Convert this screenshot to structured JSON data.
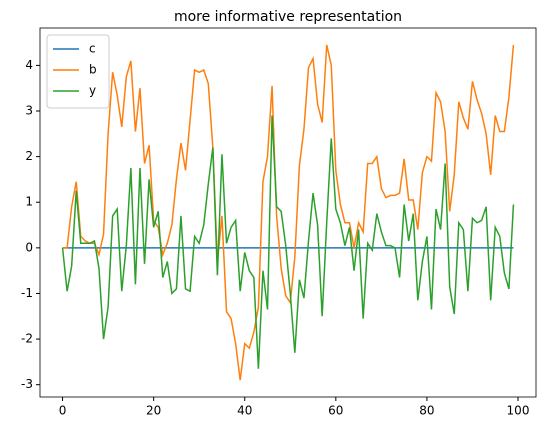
{
  "chart_data": {
    "type": "line",
    "title": "more informative representation",
    "x": [
      0,
      1,
      2,
      3,
      4,
      5,
      6,
      7,
      8,
      9,
      10,
      11,
      12,
      13,
      14,
      15,
      16,
      17,
      18,
      19,
      20,
      21,
      22,
      23,
      24,
      25,
      26,
      27,
      28,
      29,
      30,
      31,
      32,
      33,
      34,
      35,
      36,
      37,
      38,
      39,
      40,
      41,
      42,
      43,
      44,
      45,
      46,
      47,
      48,
      49,
      50,
      51,
      52,
      53,
      54,
      55,
      56,
      57,
      58,
      59,
      60,
      61,
      62,
      63,
      64,
      65,
      66,
      67,
      68,
      69,
      70,
      71,
      72,
      73,
      74,
      75,
      76,
      77,
      78,
      79,
      80,
      81,
      82,
      83,
      84,
      85,
      86,
      87,
      88,
      89,
      90,
      91,
      92,
      93,
      94,
      95,
      96,
      97,
      98,
      99
    ],
    "series": [
      {
        "name": "c",
        "color": "#1f77b4",
        "values": [
          0,
          0,
          0,
          0,
          0,
          0,
          0,
          0,
          0,
          0,
          0,
          0,
          0,
          0,
          0,
          0,
          0,
          0,
          0,
          0,
          0,
          0,
          0,
          0,
          0,
          0,
          0,
          0,
          0,
          0,
          0,
          0,
          0,
          0,
          0,
          0,
          0,
          0,
          0,
          0,
          0,
          0,
          0,
          0,
          0,
          0,
          0,
          0,
          0,
          0,
          0,
          0,
          0,
          0,
          0,
          0,
          0,
          0,
          0,
          0,
          0,
          0,
          0,
          0,
          0,
          0,
          0,
          0,
          0,
          0,
          0,
          0,
          0,
          0,
          0,
          0,
          0,
          0,
          0,
          0,
          0,
          0,
          0,
          0,
          0,
          0,
          0,
          0,
          0,
          0,
          0,
          0,
          0,
          0,
          0,
          0,
          0,
          0,
          0,
          0
        ]
      },
      {
        "name": "b",
        "color": "#ff7f0e",
        "values": [
          0,
          0,
          0.9,
          1.45,
          0.25,
          0.15,
          0.1,
          0.1,
          -0.15,
          0.3,
          2.5,
          3.85,
          3.35,
          2.65,
          3.75,
          4.1,
          2.55,
          3.5,
          1.85,
          2.25,
          0.6,
          0.45,
          -0.15,
          0.1,
          0.5,
          1.5,
          2.3,
          1.7,
          2.8,
          3.9,
          3.85,
          3.9,
          3.6,
          2.2,
          -0.3,
          0.7,
          -1.4,
          -1.55,
          -2.1,
          -2.9,
          -2.1,
          -2.2,
          -1.85,
          -1.3,
          1.45,
          2.0,
          3.55,
          0.7,
          -0.45,
          -1.05,
          -1.2,
          -0.2,
          1.8,
          2.6,
          3.95,
          4.15,
          3.15,
          2.75,
          4.45,
          4.0,
          1.7,
          0.95,
          0.55,
          0.55,
          0.0,
          0.55,
          0.35,
          1.85,
          1.85,
          2.0,
          1.3,
          1.1,
          1.15,
          1.15,
          1.2,
          1.95,
          1.05,
          1.05,
          0.4,
          1.65,
          2.0,
          1.9,
          3.4,
          3.2,
          2.55,
          0.8,
          1.6,
          3.2,
          2.85,
          2.6,
          3.65,
          3.25,
          2.95,
          2.5,
          1.6,
          2.9,
          2.55,
          2.55,
          3.3,
          4.45
        ]
      },
      {
        "name": "y",
        "color": "#2ca02c",
        "values": [
          0,
          -0.95,
          -0.4,
          1.25,
          0.1,
          0.1,
          0.1,
          0.15,
          -0.45,
          -2.0,
          -1.3,
          0.7,
          0.85,
          -0.95,
          0.05,
          1.75,
          -0.8,
          1.75,
          -0.35,
          1.5,
          0.45,
          0.8,
          -0.65,
          -0.3,
          -1.0,
          -0.9,
          0.7,
          -0.9,
          -0.95,
          0.25,
          0.1,
          0.5,
          1.4,
          2.2,
          -0.6,
          2.05,
          0.1,
          0.45,
          0.6,
          -0.95,
          -0.1,
          -0.5,
          -0.65,
          -2.65,
          -0.5,
          -1.35,
          2.9,
          0.9,
          0.8,
          0.05,
          -1.0,
          -2.3,
          -0.7,
          -1.1,
          0.15,
          1.2,
          0.5,
          -1.5,
          0.55,
          2.4,
          0.85,
          0.55,
          0.05,
          0.45,
          -0.5,
          0.4,
          -1.55,
          0.1,
          -0.05,
          0.75,
          0.35,
          0.05,
          0.05,
          0.0,
          -0.65,
          0.95,
          0.15,
          0.75,
          -1.15,
          -0.3,
          0.25,
          -1.35,
          0.85,
          0.4,
          1.85,
          -0.85,
          -1.45,
          0.55,
          0.4,
          -0.95,
          0.65,
          0.55,
          0.6,
          0.9,
          -1.15,
          0.45,
          0.25,
          -0.55,
          -0.9,
          0.95
        ]
      }
    ],
    "xlim": [
      -4.95,
      103.95
    ],
    "ylim": [
      -3.27,
      4.82
    ],
    "xticks": [
      0,
      20,
      40,
      60,
      80,
      100
    ],
    "yticks": [
      -3,
      -2,
      -1,
      0,
      1,
      2,
      3,
      4
    ],
    "grid": false,
    "legend": "upper left"
  }
}
